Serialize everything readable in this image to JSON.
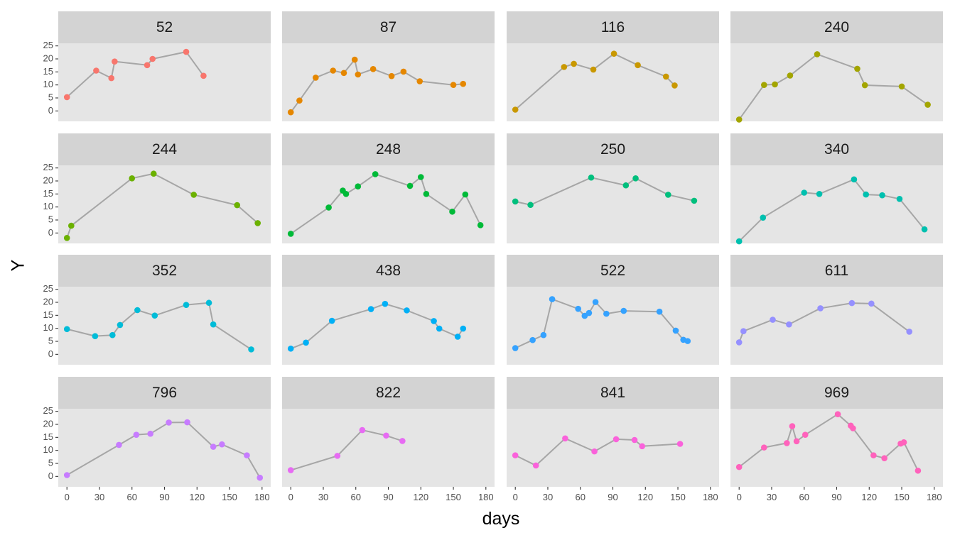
{
  "chart_data": {
    "type": "line",
    "facet_layout": "4x4 grid, free panels with shared axes",
    "xlabel": "days",
    "ylabel": "Y",
    "xlim": [
      -8,
      188
    ],
    "ylim": [
      -4,
      26
    ],
    "x_ticks": [
      0,
      30,
      60,
      90,
      120,
      150,
      180
    ],
    "y_ticks": [
      0,
      5,
      10,
      15,
      20,
      25
    ],
    "line_color": "#A6A6A6",
    "panel_background": "#E5E5E5",
    "strip_background": "#D3D3D3",
    "grid": false,
    "legend": "none",
    "facets": [
      {
        "label": "52",
        "color": "#F8766D",
        "points": [
          [
            0,
            5.3
          ],
          [
            27,
            15.5
          ],
          [
            41,
            12.6
          ],
          [
            44,
            19.0
          ],
          [
            74,
            17.6
          ],
          [
            79,
            20.0
          ],
          [
            110,
            22.7
          ],
          [
            126,
            13.5
          ]
        ]
      },
      {
        "label": "87",
        "color": "#E58700",
        "points": [
          [
            0,
            -0.5
          ],
          [
            8,
            4.0
          ],
          [
            23,
            12.8
          ],
          [
            39,
            15.5
          ],
          [
            49,
            14.6
          ],
          [
            59,
            19.7
          ],
          [
            62,
            14.0
          ],
          [
            76,
            16.1
          ],
          [
            93,
            13.4
          ],
          [
            104,
            15.1
          ],
          [
            119,
            11.4
          ],
          [
            150,
            10.0
          ],
          [
            159,
            10.4
          ]
        ]
      },
      {
        "label": "116",
        "color": "#C99800",
        "points": [
          [
            0,
            0.5
          ],
          [
            45,
            16.9
          ],
          [
            54,
            18.1
          ],
          [
            72,
            15.9
          ],
          [
            91,
            22.0
          ],
          [
            113,
            17.6
          ],
          [
            139,
            13.2
          ],
          [
            147,
            9.8
          ]
        ]
      },
      {
        "label": "240",
        "color": "#A3A500",
        "points": [
          [
            0,
            -3.3
          ],
          [
            23,
            10.0
          ],
          [
            33,
            10.2
          ],
          [
            47,
            13.6
          ],
          [
            72,
            21.8
          ],
          [
            109,
            16.2
          ],
          [
            116,
            9.9
          ],
          [
            150,
            9.4
          ],
          [
            174,
            2.4
          ]
        ]
      },
      {
        "label": "244",
        "color": "#6BB100",
        "points": [
          [
            0,
            -1.9
          ],
          [
            4,
            2.8
          ],
          [
            60,
            21.0
          ],
          [
            80,
            22.8
          ],
          [
            117,
            14.7
          ],
          [
            157,
            10.7
          ],
          [
            176,
            3.8
          ]
        ]
      },
      {
        "label": "248",
        "color": "#00BA38",
        "points": [
          [
            0,
            -0.3
          ],
          [
            35,
            9.8
          ],
          [
            48,
            16.3
          ],
          [
            51,
            15.0
          ],
          [
            62,
            17.9
          ],
          [
            78,
            22.6
          ],
          [
            110,
            18.1
          ],
          [
            120,
            21.5
          ],
          [
            125,
            15.0
          ],
          [
            149,
            8.2
          ],
          [
            161,
            14.8
          ],
          [
            175,
            3.0
          ]
        ]
      },
      {
        "label": "250",
        "color": "#00BF7D",
        "points": [
          [
            0,
            12.1
          ],
          [
            14,
            10.8
          ],
          [
            70,
            21.3
          ],
          [
            102,
            18.3
          ],
          [
            111,
            21.0
          ],
          [
            141,
            14.7
          ],
          [
            165,
            12.4
          ]
        ]
      },
      {
        "label": "340",
        "color": "#00C0AF",
        "points": [
          [
            0,
            -3.2
          ],
          [
            22,
            5.9
          ],
          [
            60,
            15.5
          ],
          [
            74,
            15.0
          ],
          [
            106,
            20.6
          ],
          [
            117,
            14.8
          ],
          [
            132,
            14.5
          ],
          [
            148,
            13.1
          ],
          [
            171,
            1.4
          ]
        ]
      },
      {
        "label": "352",
        "color": "#00BCD8",
        "points": [
          [
            0,
            9.7
          ],
          [
            26,
            7.0
          ],
          [
            42,
            7.4
          ],
          [
            49,
            11.3
          ],
          [
            65,
            17.0
          ],
          [
            81,
            14.9
          ],
          [
            110,
            19.0
          ],
          [
            131,
            19.8
          ],
          [
            135,
            11.5
          ],
          [
            170,
            1.9
          ]
        ]
      },
      {
        "label": "438",
        "color": "#00B0F6",
        "points": [
          [
            0,
            2.2
          ],
          [
            14,
            4.5
          ],
          [
            38,
            12.9
          ],
          [
            74,
            17.4
          ],
          [
            87,
            19.4
          ],
          [
            107,
            16.9
          ],
          [
            132,
            12.8
          ],
          [
            137,
            9.9
          ],
          [
            154,
            6.8
          ],
          [
            159,
            9.9
          ]
        ]
      },
      {
        "label": "522",
        "color": "#35A2FF",
        "points": [
          [
            0,
            2.4
          ],
          [
            16,
            5.5
          ],
          [
            26,
            7.4
          ],
          [
            34,
            21.2
          ],
          [
            58,
            17.5
          ],
          [
            64,
            14.8
          ],
          [
            68,
            15.9
          ],
          [
            74,
            20.1
          ],
          [
            84,
            15.6
          ],
          [
            100,
            16.7
          ],
          [
            133,
            16.4
          ],
          [
            148,
            9.1
          ],
          [
            155,
            5.6
          ],
          [
            159,
            5.1
          ]
        ]
      },
      {
        "label": "611",
        "color": "#9590FF",
        "points": [
          [
            0,
            4.6
          ],
          [
            4,
            8.9
          ],
          [
            31,
            13.3
          ],
          [
            46,
            11.5
          ],
          [
            75,
            17.7
          ],
          [
            104,
            19.7
          ],
          [
            122,
            19.5
          ],
          [
            157,
            8.7
          ]
        ]
      },
      {
        "label": "796",
        "color": "#C77CFF",
        "points": [
          [
            0,
            0.5
          ],
          [
            48,
            12.1
          ],
          [
            64,
            16.0
          ],
          [
            77,
            16.4
          ],
          [
            94,
            20.7
          ],
          [
            111,
            20.8
          ],
          [
            135,
            11.4
          ],
          [
            143,
            12.3
          ],
          [
            166,
            8.1
          ],
          [
            178,
            -0.5
          ]
        ]
      },
      {
        "label": "822",
        "color": "#E76BF3",
        "points": [
          [
            0,
            2.4
          ],
          [
            43,
            7.9
          ],
          [
            66,
            17.8
          ],
          [
            88,
            15.7
          ],
          [
            103,
            13.6
          ]
        ]
      },
      {
        "label": "841",
        "color": "#FA62DB",
        "points": [
          [
            0,
            8.1
          ],
          [
            19,
            4.2
          ],
          [
            46,
            14.6
          ],
          [
            73,
            9.6
          ],
          [
            93,
            14.3
          ],
          [
            110,
            14.0
          ],
          [
            117,
            11.6
          ],
          [
            152,
            12.5
          ]
        ]
      },
      {
        "label": "969",
        "color": "#FF62BC",
        "points": [
          [
            0,
            3.6
          ],
          [
            23,
            11.1
          ],
          [
            44,
            12.8
          ],
          [
            49,
            19.3
          ],
          [
            53,
            13.5
          ],
          [
            61,
            16.0
          ],
          [
            91,
            23.9
          ],
          [
            103,
            19.5
          ],
          [
            105,
            18.5
          ],
          [
            124,
            8.1
          ],
          [
            134,
            7.0
          ],
          [
            149,
            12.6
          ],
          [
            152,
            13.1
          ],
          [
            165,
            2.2
          ]
        ]
      }
    ]
  }
}
